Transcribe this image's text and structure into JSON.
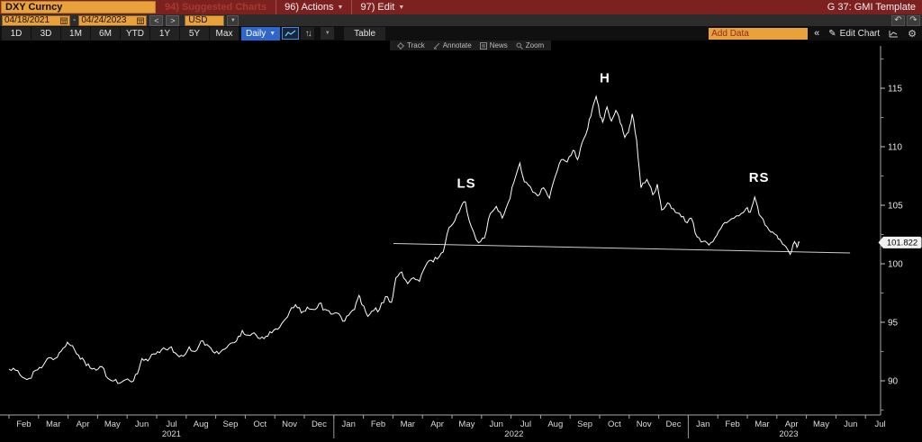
{
  "titlebar": {
    "ticker": "DXY Curncy",
    "suggested": "94) Suggested Charts",
    "actions": "96) Actions",
    "edit": "97) Edit",
    "template": "G 37: GMI Template"
  },
  "toolbar": {
    "date_from": "04/18/2021",
    "date_sep": "-",
    "date_to": "04/24/2023",
    "prev": "<",
    "next": ">",
    "currency": "USD",
    "undo": "↶",
    "redo": "↷"
  },
  "tabbar": {
    "ranges": [
      "1D",
      "3D",
      "1M",
      "6M",
      "YTD",
      "1Y",
      "5Y",
      "Max"
    ],
    "frequency": "Daily",
    "sort_icon": "↑↓",
    "table_label": "Table",
    "add_data_placeholder": "Add Data",
    "collapse": "«",
    "edit_chart_label": "Edit Chart",
    "pencil": "✎",
    "gear": "⚙"
  },
  "chart_toolbar": {
    "track": "Track",
    "annotate": "Annotate",
    "news": "News",
    "zoom": "Zoom"
  },
  "chart_data": {
    "type": "line",
    "title": "",
    "xlabel": "",
    "ylabel": "",
    "security": "DXY Curncy",
    "x_unit": "months since Feb 2021",
    "ylim": [
      87.5,
      117.5
    ],
    "grid": false,
    "line_color": "#ffffff",
    "x_months": [
      "Feb",
      "Mar",
      "Apr",
      "May",
      "Jun",
      "Jul",
      "Aug",
      "Sep",
      "Oct",
      "Nov",
      "Dec",
      "Jan",
      "Feb",
      "Mar",
      "Apr",
      "May",
      "Jun",
      "Jul",
      "Aug",
      "Sep",
      "Oct",
      "Nov",
      "Dec",
      "Jan",
      "Feb",
      "Mar",
      "Apr",
      "May",
      "Jun",
      "Jul"
    ],
    "years": [
      {
        "label": "2021",
        "m": 5.5
      },
      {
        "label": "2022",
        "m": 17.1
      },
      {
        "label": "2023",
        "m": 26.4
      }
    ],
    "year_separators": [
      11,
      23
    ],
    "y_ticks_major": [
      115,
      110,
      105,
      100,
      95,
      90
    ],
    "y_ticks_minor": [
      117.5,
      112.5,
      107.5,
      102.5,
      97.5,
      92.5,
      87.5
    ],
    "last_price": "101.822",
    "annotations": [
      {
        "text": "LS",
        "t": 15.49,
        "v": 106.5
      },
      {
        "text": "H",
        "t": 20.18,
        "v": 115.5
      },
      {
        "text": "RS",
        "t": 25.4,
        "v": 107.0
      }
    ],
    "neckline": {
      "t1": 13.02,
      "v1": 101.73,
      "t2": 28.48,
      "v2": 100.92
    },
    "series": [
      [
        0.0,
        91.0
      ],
      [
        0.22,
        90.9
      ],
      [
        0.45,
        90.3
      ],
      [
        0.68,
        90.2
      ],
      [
        0.9,
        90.9
      ],
      [
        1.1,
        91.1
      ],
      [
        1.3,
        91.9
      ],
      [
        1.5,
        91.8
      ],
      [
        1.7,
        92.4
      ],
      [
        1.9,
        92.9
      ],
      [
        1.98,
        93.3
      ],
      [
        2.15,
        93.0
      ],
      [
        2.35,
        92.2
      ],
      [
        2.55,
        91.7
      ],
      [
        2.75,
        91.1
      ],
      [
        2.95,
        90.9
      ],
      [
        3.15,
        91.2
      ],
      [
        3.35,
        90.2
      ],
      [
        3.55,
        90.0
      ],
      [
        3.75,
        89.8
      ],
      [
        3.95,
        90.1
      ],
      [
        4.15,
        89.9
      ],
      [
        4.35,
        90.6
      ],
      [
        4.5,
        91.9
      ],
      [
        4.7,
        91.7
      ],
      [
        4.9,
        92.3
      ],
      [
        5.1,
        92.4
      ],
      [
        5.3,
        92.7
      ],
      [
        5.5,
        92.9
      ],
      [
        5.7,
        92.2
      ],
      [
        5.9,
        92.1
      ],
      [
        6.1,
        92.9
      ],
      [
        6.3,
        92.5
      ],
      [
        6.5,
        93.4
      ],
      [
        6.7,
        93.1
      ],
      [
        6.9,
        92.5
      ],
      [
        7.1,
        92.3
      ],
      [
        7.3,
        92.7
      ],
      [
        7.5,
        93.2
      ],
      [
        7.7,
        93.4
      ],
      [
        7.9,
        94.3
      ],
      [
        8.1,
        93.9
      ],
      [
        8.3,
        94.1
      ],
      [
        8.5,
        93.6
      ],
      [
        8.7,
        93.8
      ],
      [
        8.9,
        94.1
      ],
      [
        9.1,
        94.4
      ],
      [
        9.3,
        95.1
      ],
      [
        9.5,
        95.9
      ],
      [
        9.7,
        96.5
      ],
      [
        9.9,
        95.8
      ],
      [
        10.1,
        96.3
      ],
      [
        10.3,
        96.1
      ],
      [
        10.5,
        96.6
      ],
      [
        10.7,
        96.1
      ],
      [
        10.9,
        95.7
      ],
      [
        11.1,
        95.8
      ],
      [
        11.3,
        95.1
      ],
      [
        11.5,
        95.6
      ],
      [
        11.7,
        96.1
      ],
      [
        11.85,
        97.3
      ],
      [
        11.95,
        96.5
      ],
      [
        12.15,
        95.5
      ],
      [
        12.35,
        96.0
      ],
      [
        12.55,
        96.1
      ],
      [
        12.75,
        97.2
      ],
      [
        12.95,
        96.7
      ],
      [
        13.1,
        98.8
      ],
      [
        13.3,
        99.3
      ],
      [
        13.5,
        98.3
      ],
      [
        13.7,
        98.8
      ],
      [
        13.9,
        98.5
      ],
      [
        14.1,
        99.8
      ],
      [
        14.3,
        100.3
      ],
      [
        14.5,
        100.4
      ],
      [
        14.7,
        101.0
      ],
      [
        14.9,
        103.1
      ],
      [
        15.1,
        103.7
      ],
      [
        15.3,
        104.8
      ],
      [
        15.45,
        105.3
      ],
      [
        15.65,
        103.2
      ],
      [
        15.9,
        101.8
      ],
      [
        16.1,
        102.2
      ],
      [
        16.3,
        104.3
      ],
      [
        16.5,
        104.9
      ],
      [
        16.7,
        103.9
      ],
      [
        16.9,
        105.2
      ],
      [
        17.1,
        107.0
      ],
      [
        17.3,
        108.6
      ],
      [
        17.45,
        107.0
      ],
      [
        17.65,
        106.6
      ],
      [
        17.9,
        105.8
      ],
      [
        18.1,
        106.5
      ],
      [
        18.3,
        105.6
      ],
      [
        18.5,
        107.5
      ],
      [
        18.7,
        108.9
      ],
      [
        18.9,
        108.7
      ],
      [
        19.1,
        109.7
      ],
      [
        19.25,
        108.9
      ],
      [
        19.4,
        110.3
      ],
      [
        19.6,
        111.6
      ],
      [
        19.75,
        113.2
      ],
      [
        19.88,
        114.3
      ],
      [
        20.0,
        112.8
      ],
      [
        20.1,
        112.1
      ],
      [
        20.25,
        113.4
      ],
      [
        20.4,
        112.2
      ],
      [
        20.55,
        113.1
      ],
      [
        20.7,
        112.0
      ],
      [
        20.85,
        110.8
      ],
      [
        20.97,
        111.2
      ],
      [
        21.1,
        112.8
      ],
      [
        21.25,
        110.6
      ],
      [
        21.4,
        106.5
      ],
      [
        21.6,
        107.2
      ],
      [
        21.8,
        105.9
      ],
      [
        21.95,
        106.8
      ],
      [
        22.1,
        104.6
      ],
      [
        22.3,
        105.2
      ],
      [
        22.5,
        104.7
      ],
      [
        22.7,
        104.3
      ],
      [
        22.9,
        103.6
      ],
      [
        23.1,
        103.9
      ],
      [
        23.3,
        102.3
      ],
      [
        23.5,
        101.9
      ],
      [
        23.7,
        101.6
      ],
      [
        23.9,
        102.2
      ],
      [
        24.1,
        103.0
      ],
      [
        24.3,
        103.5
      ],
      [
        24.55,
        103.9
      ],
      [
        24.8,
        104.3
      ],
      [
        24.95,
        104.7
      ],
      [
        25.1,
        104.4
      ],
      [
        25.25,
        105.7
      ],
      [
        25.4,
        104.2
      ],
      [
        25.6,
        103.3
      ],
      [
        25.8,
        102.7
      ],
      [
        25.95,
        102.5
      ],
      [
        26.1,
        102.1
      ],
      [
        26.25,
        101.6
      ],
      [
        26.45,
        100.8
      ],
      [
        26.6,
        101.9
      ],
      [
        26.68,
        101.4
      ],
      [
        26.77,
        101.82
      ]
    ]
  }
}
